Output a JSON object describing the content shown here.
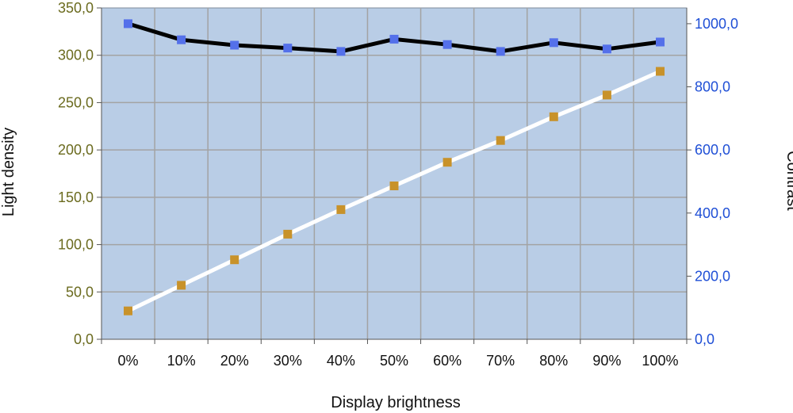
{
  "chart_data": {
    "type": "line",
    "xlabel": "Display brightness",
    "ylabel": "Light density",
    "y2label": "Contrast",
    "categories": [
      "0%",
      "10%",
      "20%",
      "30%",
      "40%",
      "50%",
      "60%",
      "70%",
      "80%",
      "90%",
      "100%"
    ],
    "ylim": [
      0,
      350
    ],
    "y2lim": [
      0,
      1050
    ],
    "yticks": [
      "0,0",
      "50,0",
      "100,0",
      "150,0",
      "200,0",
      "250,0",
      "300,0",
      "350,0"
    ],
    "y2ticks": [
      "0,0",
      "200,0",
      "400,0",
      "600,0",
      "800,0",
      "1000,0"
    ],
    "grid": true,
    "background_color": "#b9cde6",
    "series": [
      {
        "axis": "left",
        "values": [
          30,
          57,
          84,
          111,
          137,
          162,
          187,
          210,
          235,
          258,
          283
        ],
        "line_color": "#ffffff",
        "marker_color": "#c8922a"
      },
      {
        "axis": "right",
        "values": [
          1000,
          949,
          932,
          923,
          912,
          951,
          934,
          912,
          940,
          920,
          942
        ],
        "line_color": "#000000",
        "marker_color": "#5470ea"
      }
    ]
  }
}
